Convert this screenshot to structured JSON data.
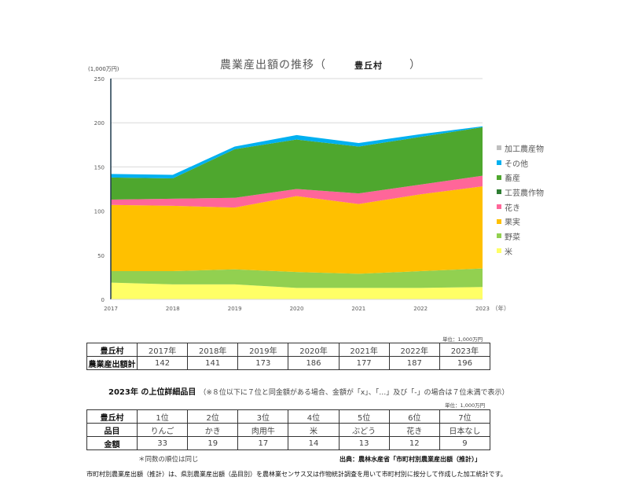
{
  "chart": {
    "title": "農業産出額の推移（",
    "municipality": "豊丘村",
    "title_close": "）",
    "y_unit": "(1,000万円)",
    "x_unit": "（年）"
  },
  "chart_data": {
    "type": "area",
    "stacked": true,
    "title": "農業産出額の推移（豊丘村）",
    "xlabel": "（年）",
    "ylabel": "(1,000万円)",
    "ylim": [
      0,
      250
    ],
    "yticks": [
      0,
      50,
      100,
      150,
      200,
      250
    ],
    "grid": true,
    "legend_position": "right",
    "categories": [
      "2017",
      "2018",
      "2019",
      "2020",
      "2021",
      "2022",
      "2023"
    ],
    "series": [
      {
        "name": "米",
        "color": "#FFFF66",
        "values": [
          19,
          17,
          17,
          13,
          13,
          13,
          14
        ]
      },
      {
        "name": "野菜",
        "color": "#92D050",
        "values": [
          13,
          15,
          17,
          18,
          16,
          19,
          21
        ]
      },
      {
        "name": "果実",
        "color": "#FFC000",
        "values": [
          75,
          74,
          70,
          86,
          79,
          87,
          93
        ]
      },
      {
        "name": "花き",
        "color": "#FF6699",
        "values": [
          6,
          8,
          11,
          8,
          12,
          11,
          12
        ]
      },
      {
        "name": "工芸農作物",
        "color": "#2E7D32",
        "values": [
          0,
          0,
          0,
          0,
          0,
          0,
          0
        ]
      },
      {
        "name": "畜産",
        "color": "#4EA72E",
        "values": [
          25,
          23,
          55,
          56,
          53,
          54,
          55
        ]
      },
      {
        "name": "その他",
        "color": "#00B0F0",
        "values": [
          4,
          4,
          3,
          5,
          4,
          3,
          1
        ]
      },
      {
        "name": "加工農産物",
        "color": "#BFBFBF",
        "values": [
          0,
          0,
          0,
          0,
          0,
          0,
          0
        ]
      }
    ],
    "totals": [
      142,
      141,
      173,
      186,
      177,
      187,
      196
    ]
  },
  "legend": [
    {
      "label": "加工農産物",
      "color": "#BFBFBF"
    },
    {
      "label": "その他",
      "color": "#00B0F0"
    },
    {
      "label": "畜産",
      "color": "#4EA72E"
    },
    {
      "label": "工芸農作物",
      "color": "#2E7D32"
    },
    {
      "label": "花き",
      "color": "#FF6699"
    },
    {
      "label": "果実",
      "color": "#FFC000"
    },
    {
      "label": "野菜",
      "color": "#92D050"
    },
    {
      "label": "米",
      "color": "#FFFF66"
    }
  ],
  "table1": {
    "unit": "単位：1,000万円",
    "header": "豊丘村",
    "years": [
      "2017年",
      "2018年",
      "2019年",
      "2020年",
      "2021年",
      "2022年",
      "2023年"
    ],
    "row_label": "農業産出額計",
    "values": [
      "142",
      "141",
      "173",
      "186",
      "177",
      "187",
      "196"
    ]
  },
  "section": {
    "title": "2023年 の上位詳細品目",
    "note": "（※８位以下に７位と同金額がある場合、金額が「x」、「…」及び「-」の場合は７位未満で表示）",
    "unit": "単位：1,000万円"
  },
  "table2": {
    "header": "豊丘村",
    "ranks": [
      "1位",
      "2位",
      "3位",
      "4位",
      "5位",
      "6位",
      "7位"
    ],
    "item_label": "品目",
    "items": [
      "りんご",
      "かき",
      "肉用牛",
      "米",
      "ぶどう",
      "花き",
      "日本なし"
    ],
    "amount_label": "金額",
    "amounts": [
      "33",
      "19",
      "17",
      "14",
      "13",
      "12",
      "9"
    ]
  },
  "footnote": "＊同数の順位は同じ",
  "source": "出典：農林水産省「市町村別農業産出額（推計）」",
  "description": "市町村別農業産出額（推計）は、県別農業産出額（品目別）を農林業センサス又は作物統計調査を用いて市町村別に按分して作成した加工統計です。"
}
